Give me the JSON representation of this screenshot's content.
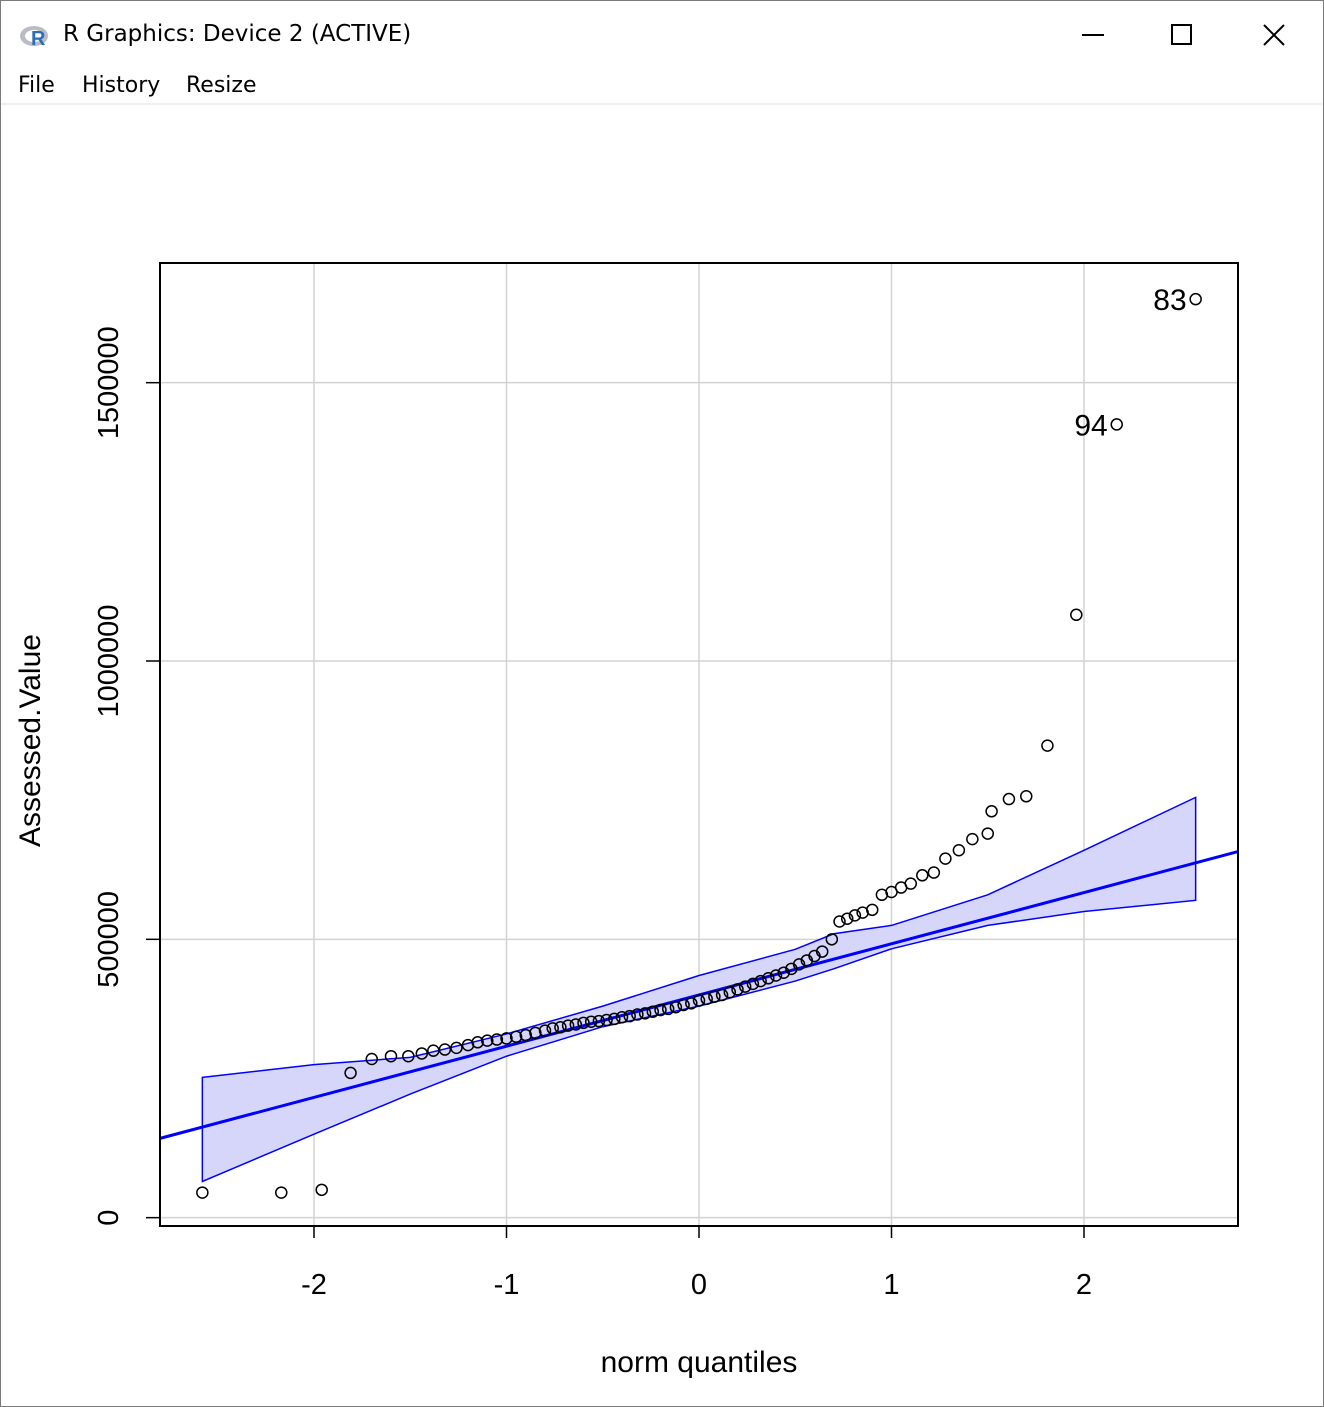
{
  "window": {
    "title": "R Graphics: Device 2 (ACTIVE)",
    "icon": "r-logo-icon",
    "controls": [
      "minimize-icon",
      "maximize-icon",
      "close-icon"
    ]
  },
  "menu": {
    "file": "File",
    "history": "History",
    "resize": "Resize"
  },
  "chart_data": {
    "type": "scatter",
    "subtype": "qq-plot with reference line and confidence envelope",
    "xlabel": "norm quantiles",
    "ylabel": "Assessed.Value",
    "xlim": [
      -2.8,
      2.8
    ],
    "ylim": [
      -15000,
      1715000
    ],
    "x_ticks": [
      -2,
      -1,
      0,
      1,
      2
    ],
    "y_ticks": [
      0,
      500000,
      1000000,
      1500000
    ],
    "x_tick_labels": [
      "-2",
      "-1",
      "0",
      "1",
      "2"
    ],
    "y_tick_labels": [
      "0",
      "500000",
      "1000000",
      "1500000"
    ],
    "grid": true,
    "colors": {
      "line": "#0000ff",
      "envelope_fill": "#d6d6fa",
      "envelope_edge": "#0000ff",
      "points": "#000000",
      "grid": "#d3d3d3"
    },
    "reference_line": {
      "intercept": 400000,
      "slope": 92000
    },
    "envelope": [
      {
        "x": -2.58,
        "lower": 65000,
        "upper": 252000
      },
      {
        "x": -2.0,
        "lower": 150000,
        "upper": 275000
      },
      {
        "x": -1.5,
        "lower": 222000,
        "upper": 288000
      },
      {
        "x": -1.0,
        "lower": 290000,
        "upper": 330000
      },
      {
        "x": -0.5,
        "lower": 343000,
        "upper": 380000
      },
      {
        "x": 0.0,
        "lower": 380000,
        "upper": 435000
      },
      {
        "x": 0.5,
        "lower": 425000,
        "upper": 482000
      },
      {
        "x": 0.7,
        "lower": 447000,
        "upper": 510000
      },
      {
        "x": 1.0,
        "lower": 483000,
        "upper": 525000
      },
      {
        "x": 1.5,
        "lower": 525000,
        "upper": 580000
      },
      {
        "x": 2.0,
        "lower": 550000,
        "upper": 660000
      },
      {
        "x": 2.58,
        "lower": 570000,
        "upper": 755000
      }
    ],
    "points": [
      {
        "x": -2.58,
        "y": 45000
      },
      {
        "x": -2.17,
        "y": 45000
      },
      {
        "x": -1.96,
        "y": 50000
      },
      {
        "x": -1.81,
        "y": 260000
      },
      {
        "x": -1.7,
        "y": 285000
      },
      {
        "x": -1.6,
        "y": 290000
      },
      {
        "x": -1.51,
        "y": 290000
      },
      {
        "x": -1.44,
        "y": 295000
      },
      {
        "x": -1.38,
        "y": 300000
      },
      {
        "x": -1.32,
        "y": 302000
      },
      {
        "x": -1.26,
        "y": 305000
      },
      {
        "x": -1.2,
        "y": 310000
      },
      {
        "x": -1.15,
        "y": 315000
      },
      {
        "x": -1.1,
        "y": 318000
      },
      {
        "x": -1.05,
        "y": 320000
      },
      {
        "x": -1.0,
        "y": 322000
      },
      {
        "x": -0.95,
        "y": 325000
      },
      {
        "x": -0.9,
        "y": 328000
      },
      {
        "x": -0.85,
        "y": 332000
      },
      {
        "x": -0.8,
        "y": 336000
      },
      {
        "x": -0.76,
        "y": 340000
      },
      {
        "x": -0.72,
        "y": 342000
      },
      {
        "x": -0.68,
        "y": 345000
      },
      {
        "x": -0.64,
        "y": 347000
      },
      {
        "x": -0.6,
        "y": 350000
      },
      {
        "x": -0.56,
        "y": 352000
      },
      {
        "x": -0.52,
        "y": 353000
      },
      {
        "x": -0.48,
        "y": 355000
      },
      {
        "x": -0.44,
        "y": 357000
      },
      {
        "x": -0.4,
        "y": 360000
      },
      {
        "x": -0.36,
        "y": 362000
      },
      {
        "x": -0.32,
        "y": 365000
      },
      {
        "x": -0.28,
        "y": 367000
      },
      {
        "x": -0.24,
        "y": 370000
      },
      {
        "x": -0.2,
        "y": 373000
      },
      {
        "x": -0.16,
        "y": 375000
      },
      {
        "x": -0.12,
        "y": 378000
      },
      {
        "x": -0.08,
        "y": 382000
      },
      {
        "x": -0.04,
        "y": 385000
      },
      {
        "x": 0.0,
        "y": 390000
      },
      {
        "x": 0.04,
        "y": 393000
      },
      {
        "x": 0.08,
        "y": 397000
      },
      {
        "x": 0.12,
        "y": 400000
      },
      {
        "x": 0.16,
        "y": 405000
      },
      {
        "x": 0.2,
        "y": 410000
      },
      {
        "x": 0.24,
        "y": 415000
      },
      {
        "x": 0.28,
        "y": 420000
      },
      {
        "x": 0.32,
        "y": 425000
      },
      {
        "x": 0.36,
        "y": 430000
      },
      {
        "x": 0.4,
        "y": 435000
      },
      {
        "x": 0.44,
        "y": 440000
      },
      {
        "x": 0.48,
        "y": 447000
      },
      {
        "x": 0.52,
        "y": 455000
      },
      {
        "x": 0.56,
        "y": 462000
      },
      {
        "x": 0.6,
        "y": 470000
      },
      {
        "x": 0.64,
        "y": 478000
      },
      {
        "x": 0.69,
        "y": 500000
      },
      {
        "x": 0.73,
        "y": 532000
      },
      {
        "x": 0.77,
        "y": 537000
      },
      {
        "x": 0.81,
        "y": 543000
      },
      {
        "x": 0.85,
        "y": 548000
      },
      {
        "x": 0.9,
        "y": 553000
      },
      {
        "x": 0.95,
        "y": 580000
      },
      {
        "x": 1.0,
        "y": 585000
      },
      {
        "x": 1.05,
        "y": 593000
      },
      {
        "x": 1.1,
        "y": 600000
      },
      {
        "x": 1.16,
        "y": 615000
      },
      {
        "x": 1.22,
        "y": 620000
      },
      {
        "x": 1.28,
        "y": 645000
      },
      {
        "x": 1.35,
        "y": 660000
      },
      {
        "x": 1.42,
        "y": 680000
      },
      {
        "x": 1.5,
        "y": 690000
      },
      {
        "x": 1.52,
        "y": 730000
      },
      {
        "x": 1.61,
        "y": 752000
      },
      {
        "x": 1.7,
        "y": 757000
      },
      {
        "x": 1.81,
        "y": 848000
      },
      {
        "x": 1.96,
        "y": 1083000
      },
      {
        "x": 2.17,
        "y": 1425000,
        "label": "94"
      },
      {
        "x": 2.58,
        "y": 1650000,
        "label": "83"
      }
    ]
  }
}
